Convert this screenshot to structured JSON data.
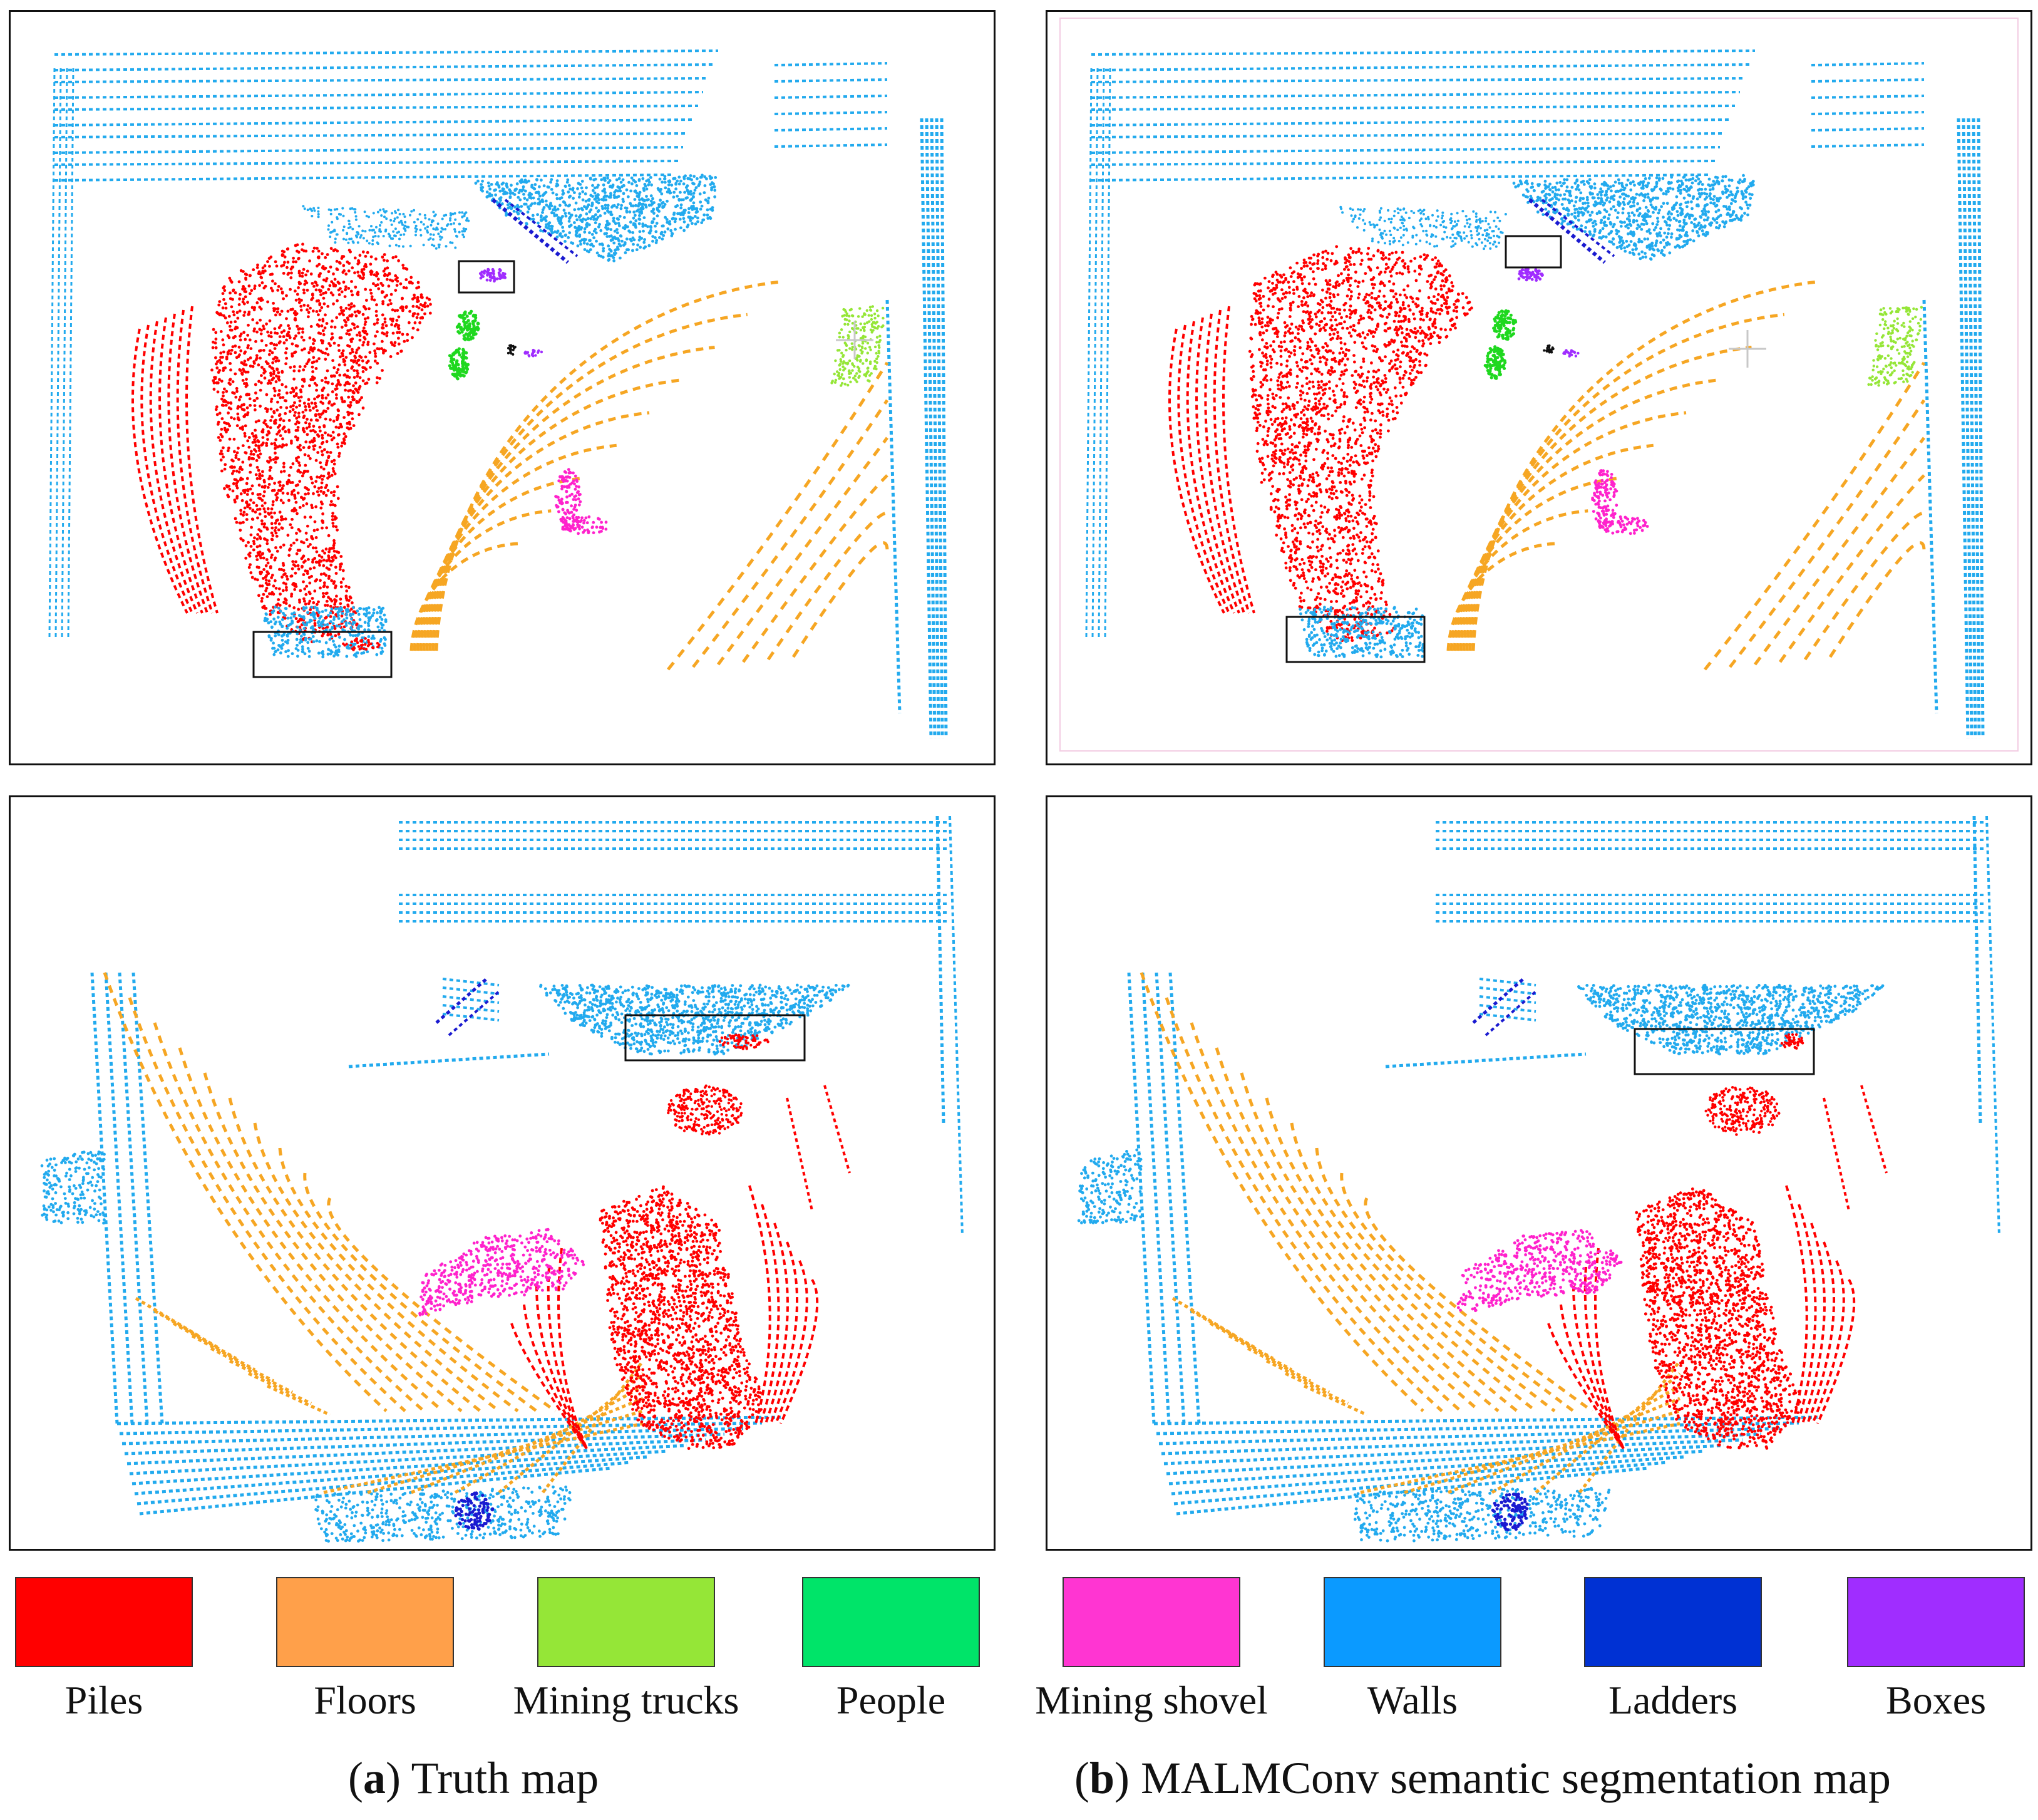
{
  "legend": {
    "items": [
      {
        "label": "Piles",
        "color": "#ff0000"
      },
      {
        "label": "Floors",
        "color": "#ffa04a"
      },
      {
        "label": "Mining trucks",
        "color": "#95e637"
      },
      {
        "label": "People",
        "color": "#00e469"
      },
      {
        "label": "Mining shovel",
        "color": "#ff35d2"
      },
      {
        "label": "Walls",
        "color": "#0b9aff"
      },
      {
        "label": "Ladders",
        "color": "#0031d3"
      },
      {
        "label": "Boxes",
        "color": "#a02dff"
      }
    ]
  },
  "captions": {
    "a_letter": "a",
    "a_text": "Truth map",
    "b_letter": "b",
    "b_text": "MALMConv semantic segmentation map"
  },
  "colors": {
    "piles": "#ff0000",
    "floors": "#f6a623",
    "trucks": "#95e637",
    "people": "#1fd81f",
    "shovel": "#ff22cc",
    "walls": "#22aaee",
    "ladders": "#1a1ad0",
    "boxes": "#a02dff",
    "highlight_box": "#111111"
  }
}
